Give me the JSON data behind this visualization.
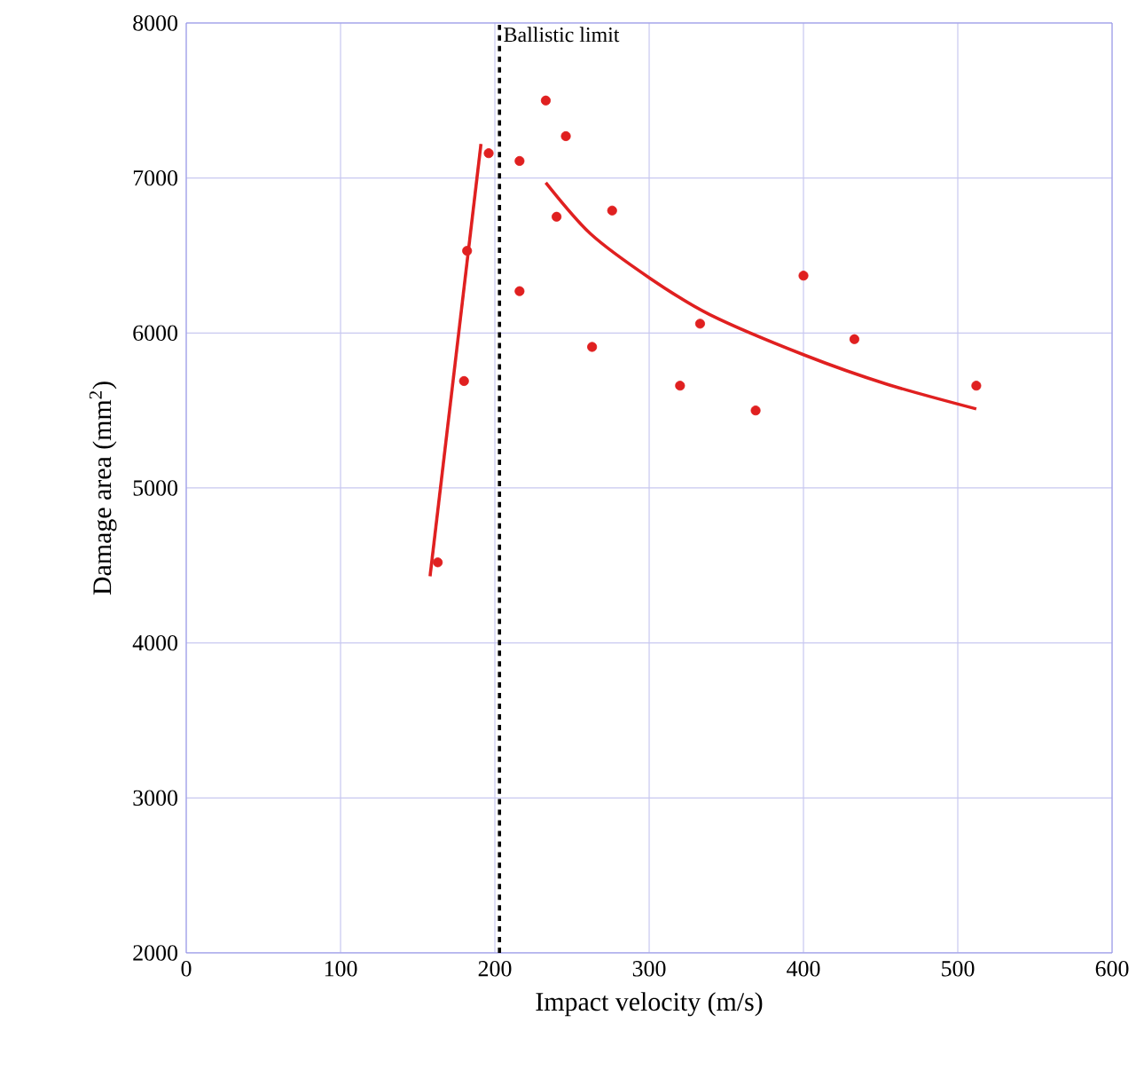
{
  "chart_data": {
    "type": "scatter",
    "xlabel": "Impact velocity (m/s)",
    "ylabel": "Damage area (mm$^{2}$)",
    "xlim": [
      0,
      600
    ],
    "xticks": [
      0,
      100,
      200,
      300,
      400,
      500,
      600
    ],
    "ylim": [
      2000,
      8000
    ],
    "yticks": [
      2000,
      3000,
      4000,
      5000,
      6000,
      7000,
      8000
    ],
    "grid": true,
    "ref_lines": [
      {
        "axis": "x",
        "value": 203,
        "label": "Ballistic limit",
        "color": "#000000",
        "line_style": "dashed"
      }
    ],
    "series": [
      {
        "color": "#e02020",
        "marker": "circle",
        "x": [
          163,
          180,
          182,
          196,
          216,
          216,
          233,
          240,
          246,
          263,
          276,
          320,
          333,
          369,
          400,
          433,
          512
        ],
        "values": [
          4520,
          5690,
          6530,
          7160,
          7110,
          6270,
          7500,
          6750,
          7270,
          5910,
          6790,
          5660,
          6060,
          5500,
          6370,
          5960,
          5660
        ]
      },
      {
        "type": "line",
        "color": "#e02020",
        "marker": "none",
        "x": [
          158,
          191
        ],
        "values": [
          4430,
          7220
        ]
      },
      {
        "type": "line",
        "color": "#e02020",
        "marker": "none",
        "x": [
          233,
          262,
          301,
          339,
          400,
          454,
          512
        ],
        "values": [
          6970,
          6640,
          6350,
          6120,
          5860,
          5670,
          5510
        ]
      }
    ]
  }
}
